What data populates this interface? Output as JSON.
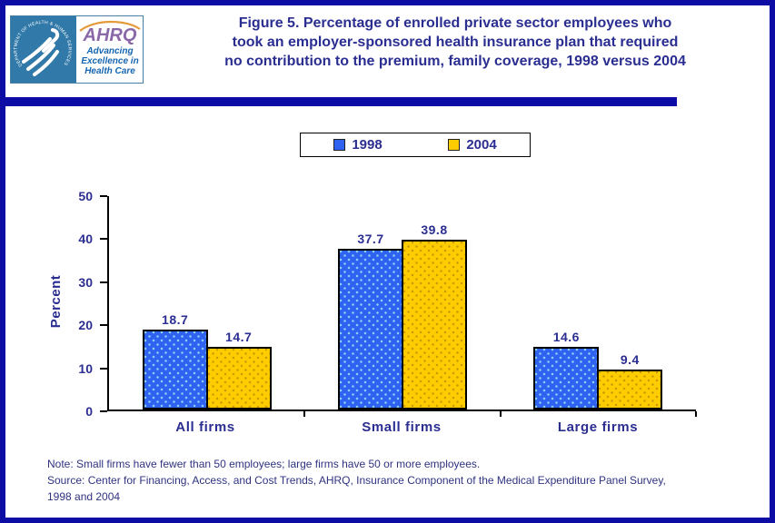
{
  "header": {
    "logo": {
      "hhs_seal_text": "DEPARTMENT OF HEALTH & HUMAN SERVICES · USA",
      "hhs_eagle_icon": "hhs-eagle-icon",
      "ahrq_acronym": "AHRQ",
      "ahrq_tagline_lines": [
        "Advancing",
        "Excellence in",
        "Health Care"
      ]
    }
  },
  "chart_data": {
    "type": "bar",
    "title": "Figure 5. Percentage of enrolled private sector employees who took an employer-sponsored health insurance plan that required no contribution to the premium, family coverage, 1998 versus 2004",
    "title_lines": [
      "Figure 5. Percentage of enrolled private sector employees who",
      "took an employer-sponsored health insurance plan that required",
      "no contribution to the premium, family coverage, 1998 versus 2004"
    ],
    "categories": [
      "All firms",
      "Small firms",
      "Large firms"
    ],
    "series": [
      {
        "name": "1998",
        "color": "#2f62f1",
        "dot_color": "#8ed2f4",
        "values": [
          18.7,
          37.7,
          14.6
        ]
      },
      {
        "name": "2004",
        "color": "#ffcc00",
        "dot_color": "#c79a06",
        "values": [
          14.7,
          39.8,
          9.4
        ]
      }
    ],
    "xlabel": "",
    "ylabel": "Percent",
    "ylim": [
      0,
      50
    ],
    "yticks": [
      0,
      10,
      20,
      30,
      40,
      50
    ],
    "grid": false,
    "legend_position": "top-center",
    "value_labels": true,
    "value_label_decimals": 1
  },
  "footer": {
    "note": "Note: Small firms have fewer than 50 employees; large firms have 50 or more employees.",
    "source_lines": [
      "Source: Center for Financing, Access, and Cost Trends, AHRQ, Insurance Component of the Medical Expenditure Panel Survey,",
      "1998 and 2004"
    ]
  },
  "colors": {
    "text_navy": "#2b2e91",
    "frame_blue": "#0d0da6",
    "axis_black": "#000000",
    "background": "#ffffff",
    "bar_1998": "#2f62f1",
    "bar_2004": "#ffcc00",
    "hhs_teal": "#3079a8",
    "ahrq_purple": "#8a68a8",
    "tagline_blue": "#1565b0",
    "arc_orange": "#e39b3b"
  }
}
